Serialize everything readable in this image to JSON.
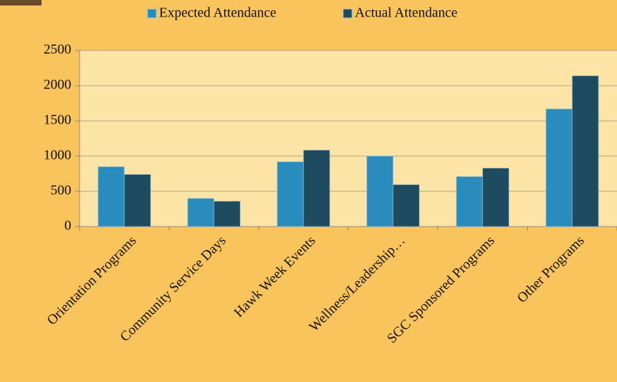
{
  "chart_data": {
    "type": "bar",
    "categories": [
      "Orientation Programs",
      "Community Service Days",
      "Hawk Week Events",
      "Wellness/Leadership…",
      "SGC Sponsored Programs",
      "Other Programs"
    ],
    "series": [
      {
        "name": "Expected Attendance",
        "color": "#2a8bbd",
        "values": [
          850,
          400,
          920,
          1000,
          710,
          1670
        ]
      },
      {
        "name": "Actual Attendance",
        "color": "#1f4b60",
        "values": [
          740,
          360,
          1085,
          595,
          830,
          2140
        ]
      }
    ],
    "ylim": [
      0,
      2500
    ],
    "yticks": [
      0,
      500,
      1000,
      1500,
      2000,
      2500
    ],
    "grid": true
  }
}
